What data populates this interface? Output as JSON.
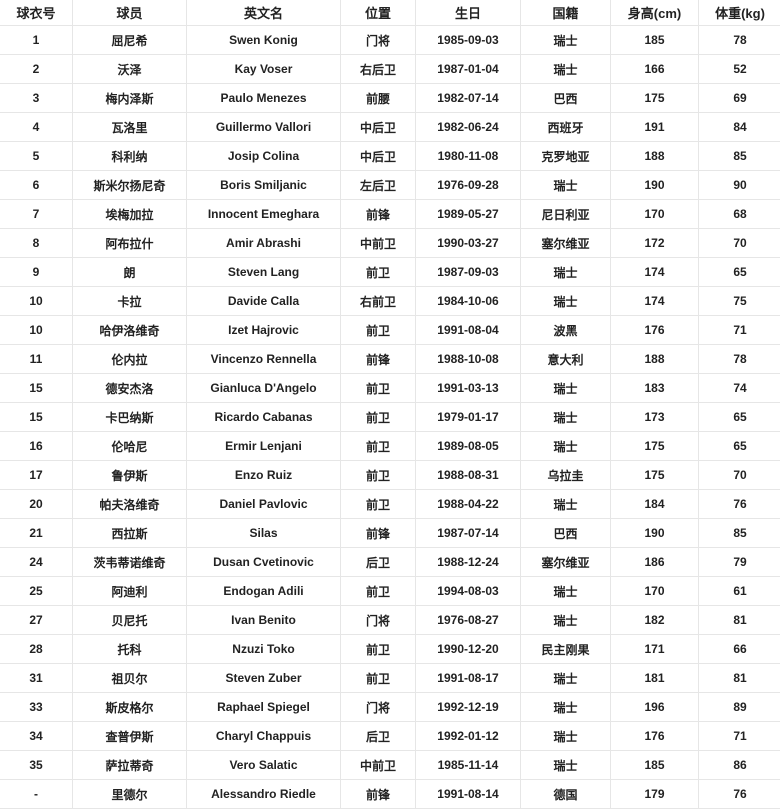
{
  "table": {
    "headers": [
      "球衣号",
      "球员",
      "英文名",
      "位置",
      "生日",
      "国籍",
      "身高(cm)",
      "体重(kg)"
    ],
    "rows": [
      [
        "1",
        "屈尼希",
        "Swen Konig",
        "门将",
        "1985-09-03",
        "瑞士",
        "185",
        "78"
      ],
      [
        "2",
        "沃泽",
        "Kay Voser",
        "右后卫",
        "1987-01-04",
        "瑞士",
        "166",
        "52"
      ],
      [
        "3",
        "梅内泽斯",
        "Paulo Menezes",
        "前腰",
        "1982-07-14",
        "巴西",
        "175",
        "69"
      ],
      [
        "4",
        "瓦洛里",
        "Guillermo Vallori",
        "中后卫",
        "1982-06-24",
        "西班牙",
        "191",
        "84"
      ],
      [
        "5",
        "科利纳",
        "Josip Colina",
        "中后卫",
        "1980-11-08",
        "克罗地亚",
        "188",
        "85"
      ],
      [
        "6",
        "斯米尔扬尼奇",
        "Boris Smiljanic",
        "左后卫",
        "1976-09-28",
        "瑞士",
        "190",
        "90"
      ],
      [
        "7",
        "埃梅加拉",
        "Innocent Emeghara",
        "前锋",
        "1989-05-27",
        "尼日利亚",
        "170",
        "68"
      ],
      [
        "8",
        "阿布拉什",
        "Amir Abrashi",
        "中前卫",
        "1990-03-27",
        "塞尔维亚",
        "172",
        "70"
      ],
      [
        "9",
        "朗",
        "Steven Lang",
        "前卫",
        "1987-09-03",
        "瑞士",
        "174",
        "65"
      ],
      [
        "10",
        "卡拉",
        "Davide Calla",
        "右前卫",
        "1984-10-06",
        "瑞士",
        "174",
        "75"
      ],
      [
        "10",
        "哈伊洛维奇",
        "Izet Hajrovic",
        "前卫",
        "1991-08-04",
        "波黑",
        "176",
        "71"
      ],
      [
        "11",
        "伦内拉",
        "Vincenzo Rennella",
        "前锋",
        "1988-10-08",
        "意大利",
        "188",
        "78"
      ],
      [
        "15",
        "德安杰洛",
        "Gianluca D'Angelo",
        "前卫",
        "1991-03-13",
        "瑞士",
        "183",
        "74"
      ],
      [
        "15",
        "卡巴纳斯",
        "Ricardo Cabanas",
        "前卫",
        "1979-01-17",
        "瑞士",
        "173",
        "65"
      ],
      [
        "16",
        "伦哈尼",
        "Ermir Lenjani",
        "前卫",
        "1989-08-05",
        "瑞士",
        "175",
        "65"
      ],
      [
        "17",
        "鲁伊斯",
        "Enzo Ruiz",
        "前卫",
        "1988-08-31",
        "乌拉圭",
        "175",
        "70"
      ],
      [
        "20",
        "帕夫洛维奇",
        "Daniel Pavlovic",
        "前卫",
        "1988-04-22",
        "瑞士",
        "184",
        "76"
      ],
      [
        "21",
        "西拉斯",
        "Silas",
        "前锋",
        "1987-07-14",
        "巴西",
        "190",
        "85"
      ],
      [
        "24",
        "茨韦蒂诺维奇",
        "Dusan Cvetinovic",
        "后卫",
        "1988-12-24",
        "塞尔维亚",
        "186",
        "79"
      ],
      [
        "25",
        "阿迪利",
        "Endogan Adili",
        "前卫",
        "1994-08-03",
        "瑞士",
        "170",
        "61"
      ],
      [
        "27",
        "贝尼托",
        "Ivan Benito",
        "门将",
        "1976-08-27",
        "瑞士",
        "182",
        "81"
      ],
      [
        "28",
        "托科",
        "Nzuzi Toko",
        "前卫",
        "1990-12-20",
        "民主刚果",
        "171",
        "66"
      ],
      [
        "31",
        "祖贝尔",
        "Steven Zuber",
        "前卫",
        "1991-08-17",
        "瑞士",
        "181",
        "81"
      ],
      [
        "33",
        "斯皮格尔",
        "Raphael Spiegel",
        "门将",
        "1992-12-19",
        "瑞士",
        "196",
        "89"
      ],
      [
        "34",
        "查普伊斯",
        "Charyl Chappuis",
        "后卫",
        "1992-01-12",
        "瑞士",
        "176",
        "71"
      ],
      [
        "35",
        "萨拉蒂奇",
        "Vero Salatic",
        "中前卫",
        "1985-11-14",
        "瑞士",
        "185",
        "86"
      ],
      [
        "-",
        "里德尔",
        "Alessandro Riedle",
        "前锋",
        "1991-08-14",
        "德国",
        "179",
        "76"
      ]
    ]
  }
}
